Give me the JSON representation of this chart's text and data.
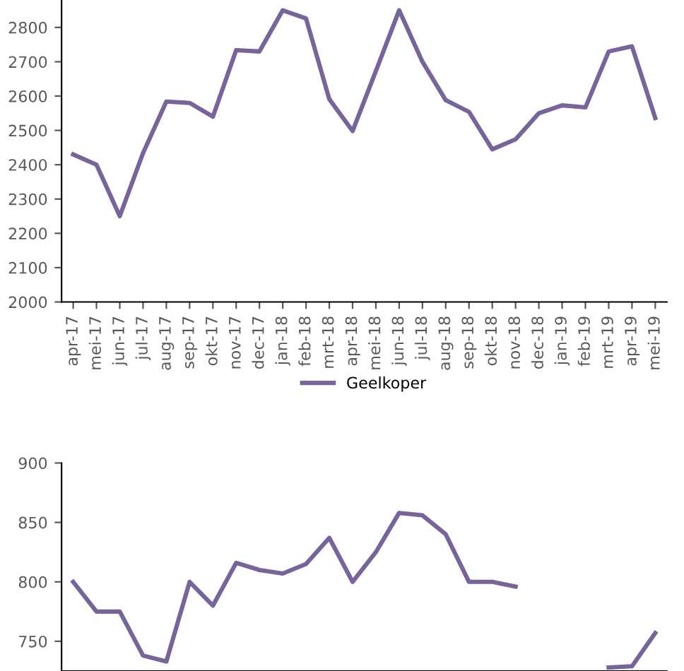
{
  "chart_data": [
    {
      "type": "line",
      "categories": [
        "apr-17",
        "mei-17",
        "jun-17",
        "jul-17",
        "aug-17",
        "sep-17",
        "okt-17",
        "nov-17",
        "dec-17",
        "jan-18",
        "feb-18",
        "mrt-18",
        "apr-18",
        "mei-18",
        "jun-18",
        "jul-18",
        "aug-18",
        "sep-18",
        "okt-18",
        "nov-18",
        "dec-18",
        "jan-19",
        "feb-19",
        "mrt-19",
        "apr-19",
        "mei-19"
      ],
      "series": [
        {
          "name": "Geelkoper",
          "color": "#76649a",
          "values": [
            2430,
            2400,
            2250,
            2434,
            2584,
            2580,
            2540,
            2734,
            2730,
            2850,
            2826,
            2591,
            2498,
            2673,
            2850,
            2700,
            2588,
            2554,
            2445,
            2474,
            2550,
            2573,
            2567,
            2730,
            2745,
            2536
          ]
        }
      ],
      "ylim": [
        2000,
        2880
      ],
      "yticks": [
        2000,
        2100,
        2200,
        2300,
        2400,
        2500,
        2600,
        2700,
        2800
      ],
      "grid": false,
      "legend": "bottom",
      "marker": "none",
      "line_style": "solid"
    },
    {
      "type": "line",
      "categories": [
        null,
        null,
        null,
        null,
        null,
        null,
        null,
        null,
        null,
        null,
        null,
        null,
        null,
        null,
        null,
        null,
        null,
        null,
        null,
        null,
        null,
        null,
        null,
        null,
        null,
        null
      ],
      "series": [
        {
          "color": "#76649a",
          "values": [
            800,
            775,
            775,
            738,
            733,
            800,
            780,
            816,
            810,
            807,
            815,
            837,
            800,
            825,
            858,
            856,
            840,
            800,
            800,
            796,
            null,
            null,
            null,
            728,
            729,
            757
          ]
        }
      ],
      "ylim": [
        725,
        900
      ],
      "yticks": [
        750,
        800,
        850,
        900
      ],
      "grid": false,
      "legend": false,
      "marker": "none",
      "line_style": "solid",
      "tick_labels": "y"
    }
  ]
}
